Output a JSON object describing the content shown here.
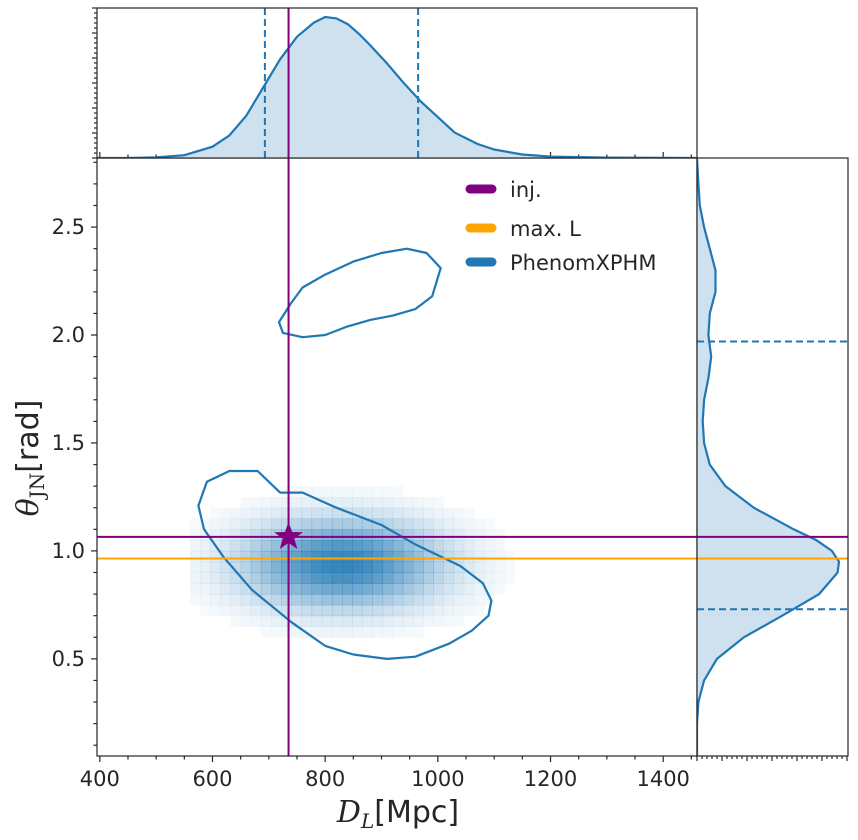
{
  "chart_data": {
    "type": "corner",
    "xlabel_symbol": "D",
    "xlabel_sub": "L",
    "xlabel_unit": "[Mpc]",
    "ylabel_symbol": "θ",
    "ylabel_sub": "JN",
    "ylabel_unit": "[rad]",
    "xlim": [
      395,
      1460
    ],
    "ylim": [
      0.05,
      2.82
    ],
    "xticks": [
      400,
      600,
      800,
      1000,
      1200,
      1400
    ],
    "yticks": [
      0.5,
      1.0,
      1.5,
      2.0,
      2.5
    ],
    "colors": {
      "injection": "#800080",
      "max_likelihood": "#FFA500",
      "posterior": "#1F77B4",
      "fill": "#CFE1EF",
      "axis": "#262626"
    },
    "legend": {
      "position": "upper-right",
      "entries": [
        {
          "key": "injection",
          "label": "inj."
        },
        {
          "key": "max_likelihood",
          "label": "max. L"
        },
        {
          "key": "posterior",
          "label": "PhenomXPHM"
        }
      ]
    },
    "injection": {
      "x": 735,
      "y": 1.065
    },
    "max_likelihood": {
      "y": 0.965
    },
    "marginal_x": {
      "x": [
        395,
        450,
        500,
        550,
        600,
        630,
        660,
        690,
        720,
        750,
        780,
        800,
        820,
        840,
        860,
        880,
        910,
        940,
        970,
        1000,
        1030,
        1070,
        1100,
        1150,
        1200,
        1300,
        1400,
        1460
      ],
      "density": [
        0.0,
        0.0,
        0.005,
        0.02,
        0.08,
        0.16,
        0.3,
        0.5,
        0.7,
        0.86,
        0.96,
        1.0,
        0.99,
        0.95,
        0.88,
        0.8,
        0.67,
        0.53,
        0.4,
        0.29,
        0.18,
        0.1,
        0.06,
        0.025,
        0.01,
        0.003,
        0.001,
        0.0
      ],
      "interval": [
        693,
        965
      ]
    },
    "marginal_y": {
      "y": [
        0.05,
        0.2,
        0.3,
        0.4,
        0.5,
        0.6,
        0.7,
        0.8,
        0.9,
        0.95,
        1.0,
        1.05,
        1.1,
        1.2,
        1.3,
        1.4,
        1.5,
        1.6,
        1.7,
        1.8,
        1.9,
        2.0,
        2.1,
        2.2,
        2.3,
        2.4,
        2.5,
        2.6,
        2.7,
        2.82
      ],
      "density": [
        0.0,
        0.0,
        0.01,
        0.05,
        0.14,
        0.33,
        0.6,
        0.86,
        0.99,
        1.0,
        0.95,
        0.84,
        0.68,
        0.4,
        0.2,
        0.09,
        0.05,
        0.04,
        0.05,
        0.08,
        0.1,
        0.08,
        0.09,
        0.13,
        0.13,
        0.09,
        0.05,
        0.02,
        0.01,
        0.0
      ],
      "interval": [
        0.73,
        1.97
      ]
    },
    "contours": [
      {
        "points": [
          [
            720,
            1.27
          ],
          [
            760,
            1.27
          ],
          [
            820,
            1.2
          ],
          [
            900,
            1.12
          ],
          [
            960,
            1.03
          ],
          [
            1040,
            0.93
          ],
          [
            1080,
            0.85
          ],
          [
            1095,
            0.77
          ],
          [
            1090,
            0.7
          ],
          [
            1060,
            0.63
          ],
          [
            1020,
            0.57
          ],
          [
            960,
            0.51
          ],
          [
            910,
            0.5
          ],
          [
            850,
            0.52
          ],
          [
            800,
            0.56
          ],
          [
            740,
            0.67
          ],
          [
            670,
            0.82
          ],
          [
            620,
            0.97
          ],
          [
            585,
            1.1
          ],
          [
            575,
            1.21
          ],
          [
            590,
            1.32
          ],
          [
            630,
            1.37
          ],
          [
            680,
            1.37
          ],
          [
            720,
            1.27
          ]
        ]
      },
      {
        "points": [
          [
            740,
            2.15
          ],
          [
            760,
            2.22
          ],
          [
            800,
            2.28
          ],
          [
            850,
            2.34
          ],
          [
            900,
            2.38
          ],
          [
            945,
            2.4
          ],
          [
            980,
            2.38
          ],
          [
            1005,
            2.31
          ],
          [
            990,
            2.18
          ],
          [
            960,
            2.12
          ],
          [
            920,
            2.09
          ],
          [
            880,
            2.07
          ],
          [
            840,
            2.04
          ],
          [
            800,
            2.0
          ],
          [
            760,
            1.99
          ],
          [
            725,
            2.01
          ],
          [
            718,
            2.06
          ],
          [
            740,
            2.15
          ]
        ]
      }
    ],
    "density_peak": {
      "x": 830,
      "y": 0.94
    }
  }
}
